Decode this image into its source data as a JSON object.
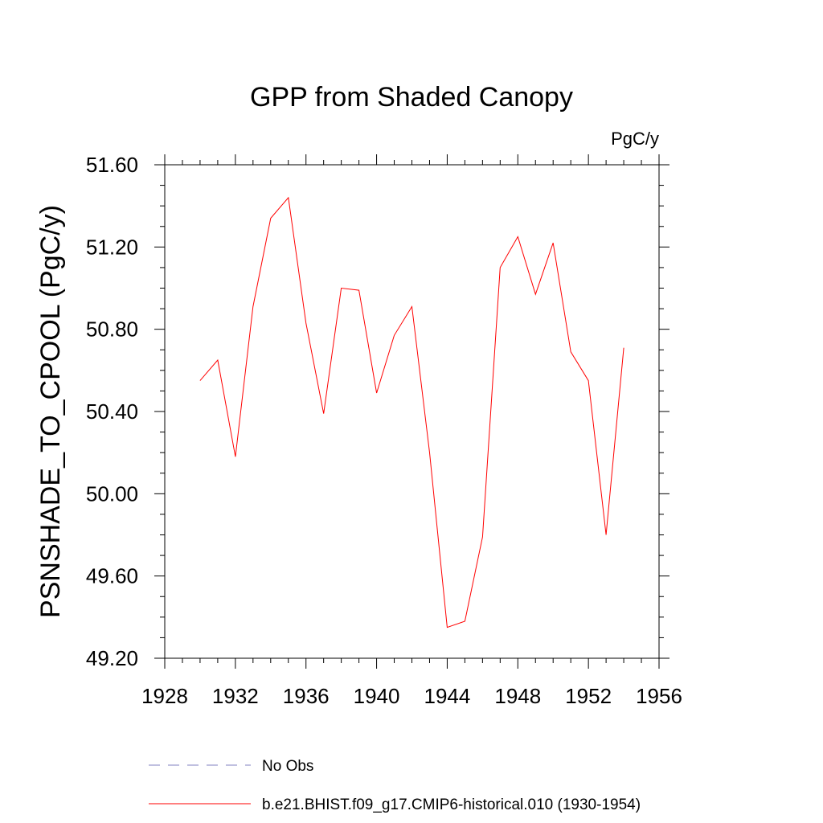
{
  "chart_data": {
    "type": "line",
    "title": "GPP from Shaded Canopy",
    "units": "PgC/y",
    "ylabel": "PSNSHADE_TO_CPOOL  (PgC/y)",
    "xlabel": "",
    "xlim": [
      1928,
      1956
    ],
    "ylim": [
      49.2,
      51.6
    ],
    "x_ticks": [
      1928,
      1932,
      1936,
      1940,
      1944,
      1948,
      1952,
      1956
    ],
    "x_tick_labels": [
      "1928",
      "1932",
      "1936",
      "1940",
      "1944",
      "1948",
      "1952",
      "1956"
    ],
    "y_ticks": [
      49.2,
      49.6,
      50.0,
      50.4,
      50.8,
      51.2,
      51.6
    ],
    "y_tick_labels": [
      "49.20",
      "49.60",
      "50.00",
      "50.40",
      "50.80",
      "51.20",
      "51.60"
    ],
    "series": [
      {
        "name": "b.e21.BHIST.f09_g17.CMIP6-historical.010 (1930-1954)",
        "color": "#ff0000",
        "x": [
          1930,
          1931,
          1932,
          1933,
          1934,
          1935,
          1936,
          1937,
          1938,
          1939,
          1940,
          1941,
          1942,
          1943,
          1944,
          1945,
          1946,
          1947,
          1948,
          1949,
          1950,
          1951,
          1952,
          1953,
          1954
        ],
        "y": [
          50.55,
          50.65,
          50.18,
          50.91,
          51.34,
          51.44,
          50.83,
          50.39,
          51.0,
          50.99,
          50.49,
          50.77,
          50.91,
          50.2,
          49.35,
          49.38,
          49.79,
          51.1,
          51.25,
          50.97,
          51.22,
          50.69,
          50.55,
          49.8,
          50.71
        ]
      }
    ],
    "legend": [
      {
        "label": "No Obs",
        "style": "dashed",
        "color": "#8080c0"
      },
      {
        "label": "b.e21.BHIST.f09_g17.CMIP6-historical.010 (1930-1954)",
        "style": "solid",
        "color": "#ff0000"
      }
    ],
    "legend_position": "bottom",
    "grid": false
  }
}
